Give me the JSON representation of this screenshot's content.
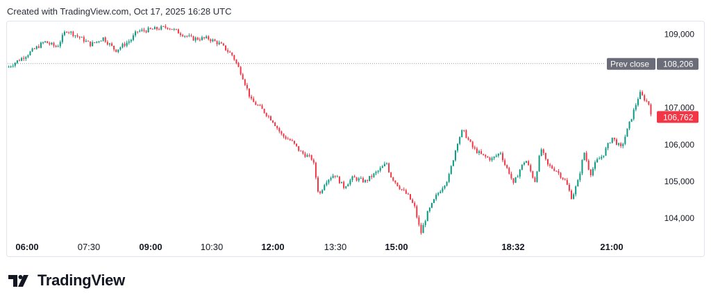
{
  "header": {
    "text": "Created with TradingView.com, Oct 17, 2025 16:28 UTC"
  },
  "footer": {
    "brand": "TradingView",
    "logo_icon": "tradingview-logo-icon"
  },
  "colors": {
    "up": "#089981",
    "down": "#f23645",
    "prev_close_label_bg": "#6a6d78",
    "last_label_bg": "#f23645"
  },
  "chart_data": {
    "type": "candlestick",
    "x_tick_labels": [
      {
        "label": "06:00",
        "bold": true
      },
      {
        "label": "07:30",
        "bold": false
      },
      {
        "label": "09:00",
        "bold": true
      },
      {
        "label": "10:30",
        "bold": false
      },
      {
        "label": "12:00",
        "bold": true
      },
      {
        "label": "13:30",
        "bold": false
      },
      {
        "label": "15:00",
        "bold": true
      },
      {
        "label": "18:32",
        "bold": true
      },
      {
        "label": "21:00",
        "bold": true
      }
    ],
    "y_ticks": [
      104000,
      105000,
      106000,
      107000,
      109000
    ],
    "y_tick_labels": [
      "104,000",
      "105,000",
      "106,000",
      "107,000",
      "109,000"
    ],
    "ylim": [
      103530,
      109330
    ],
    "prev_close": {
      "label": "Prev close",
      "value": 108206,
      "value_label": "108,206"
    },
    "last_price": {
      "value": 106762,
      "value_label": "106,762"
    },
    "path": [
      [
        0,
        108100
      ],
      [
        3,
        108430
      ],
      [
        6,
        108800
      ],
      [
        8,
        108650
      ],
      [
        9.5,
        109120
      ],
      [
        12,
        108880
      ],
      [
        13.5,
        108720
      ],
      [
        15.5,
        108900
      ],
      [
        17.5,
        108560
      ],
      [
        20,
        108850
      ],
      [
        21,
        109080
      ],
      [
        23,
        109120
      ],
      [
        26,
        109200
      ],
      [
        28,
        109030
      ],
      [
        30,
        108880
      ],
      [
        32.5,
        108890
      ],
      [
        34.5,
        108730
      ],
      [
        36.5,
        108420
      ],
      [
        38,
        107900
      ],
      [
        39.5,
        107200
      ],
      [
        41,
        107000
      ],
      [
        43,
        106650
      ],
      [
        44.5,
        106250
      ],
      [
        46,
        106100
      ],
      [
        47.5,
        105800
      ],
      [
        49.5,
        105600
      ],
      [
        50.5,
        104600
      ],
      [
        51.5,
        105000
      ],
      [
        53,
        105200
      ],
      [
        54.5,
        104850
      ],
      [
        56,
        105100
      ],
      [
        58,
        105000
      ],
      [
        60,
        105270
      ],
      [
        61.5,
        105500
      ],
      [
        62,
        105180
      ],
      [
        63.5,
        104850
      ],
      [
        65,
        104600
      ],
      [
        66,
        104300
      ],
      [
        67,
        103580
      ],
      [
        68,
        104100
      ],
      [
        69.5,
        104600
      ],
      [
        71.5,
        105100
      ],
      [
        73,
        106100
      ],
      [
        73.8,
        106400
      ],
      [
        75.5,
        105900
      ],
      [
        77,
        105700
      ],
      [
        78.5,
        105600
      ],
      [
        80,
        105800
      ],
      [
        80.5,
        105500
      ],
      [
        81.5,
        105200
      ],
      [
        82,
        104900
      ],
      [
        83,
        105300
      ],
      [
        84,
        105600
      ],
      [
        85.5,
        105000
      ],
      [
        86.5,
        105900
      ],
      [
        87.5,
        105450
      ],
      [
        89,
        105300
      ],
      [
        90.5,
        105000
      ],
      [
        91.5,
        104550
      ],
      [
        92.5,
        105000
      ],
      [
        93.5,
        105800
      ],
      [
        94.5,
        105200
      ],
      [
        95.5,
        105550
      ],
      [
        96.5,
        105700
      ],
      [
        98,
        106200
      ],
      [
        99.5,
        105900
      ],
      [
        101,
        106650
      ],
      [
        102.5,
        107400
      ],
      [
        104,
        107100
      ],
      [
        104.5,
        106762
      ]
    ],
    "x_max": 104.5,
    "candle_count": 300
  }
}
